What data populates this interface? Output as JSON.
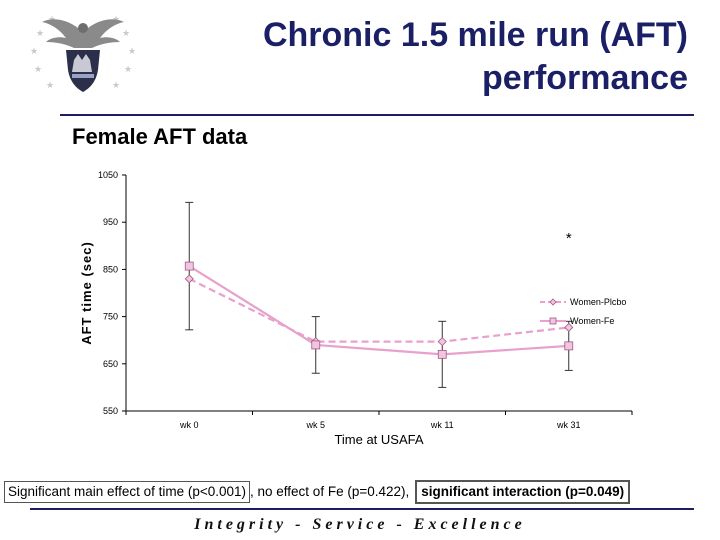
{
  "header": {
    "title_line1": "Chronic 1.5 mile run (AFT)",
    "title_line2": "performance",
    "subtitle": "Female AFT data",
    "logo_icon": "usafa-eagle-seal-icon"
  },
  "chart_data": {
    "type": "line",
    "title": "",
    "xlabel": "Time at USAFA",
    "ylabel": "AFT time (sec)",
    "categories": [
      "wk 0",
      "wk 5",
      "wk 11",
      "wk 31"
    ],
    "ylim": [
      550,
      1050
    ],
    "yticks": [
      1050,
      950,
      850,
      750,
      650,
      550
    ],
    "grid": false,
    "legend_position": "right",
    "series": [
      {
        "name": "Women-Plcbo",
        "values": [
          830,
          697,
          697,
          727
        ],
        "color": "#e8a0cc",
        "marker": "diamond",
        "line": "dashed",
        "error": [
          null,
          null,
          null,
          null
        ]
      },
      {
        "name": "Women-Fe",
        "values": [
          857,
          690,
          670,
          688
        ],
        "color": "#e8a0cc",
        "marker": "square",
        "line": "solid",
        "error": [
          135,
          60,
          70,
          52
        ]
      }
    ],
    "annotations": [
      {
        "category": "wk 31",
        "text": "*"
      }
    ]
  },
  "footnote": {
    "part1": "Significant main effect of time (p<0.001)",
    "part2": ", no effect of Fe (p=0.422),",
    "part3": "significant interaction (p=0.049)"
  },
  "footer": {
    "motto": "Integrity - Service - Excellence"
  }
}
